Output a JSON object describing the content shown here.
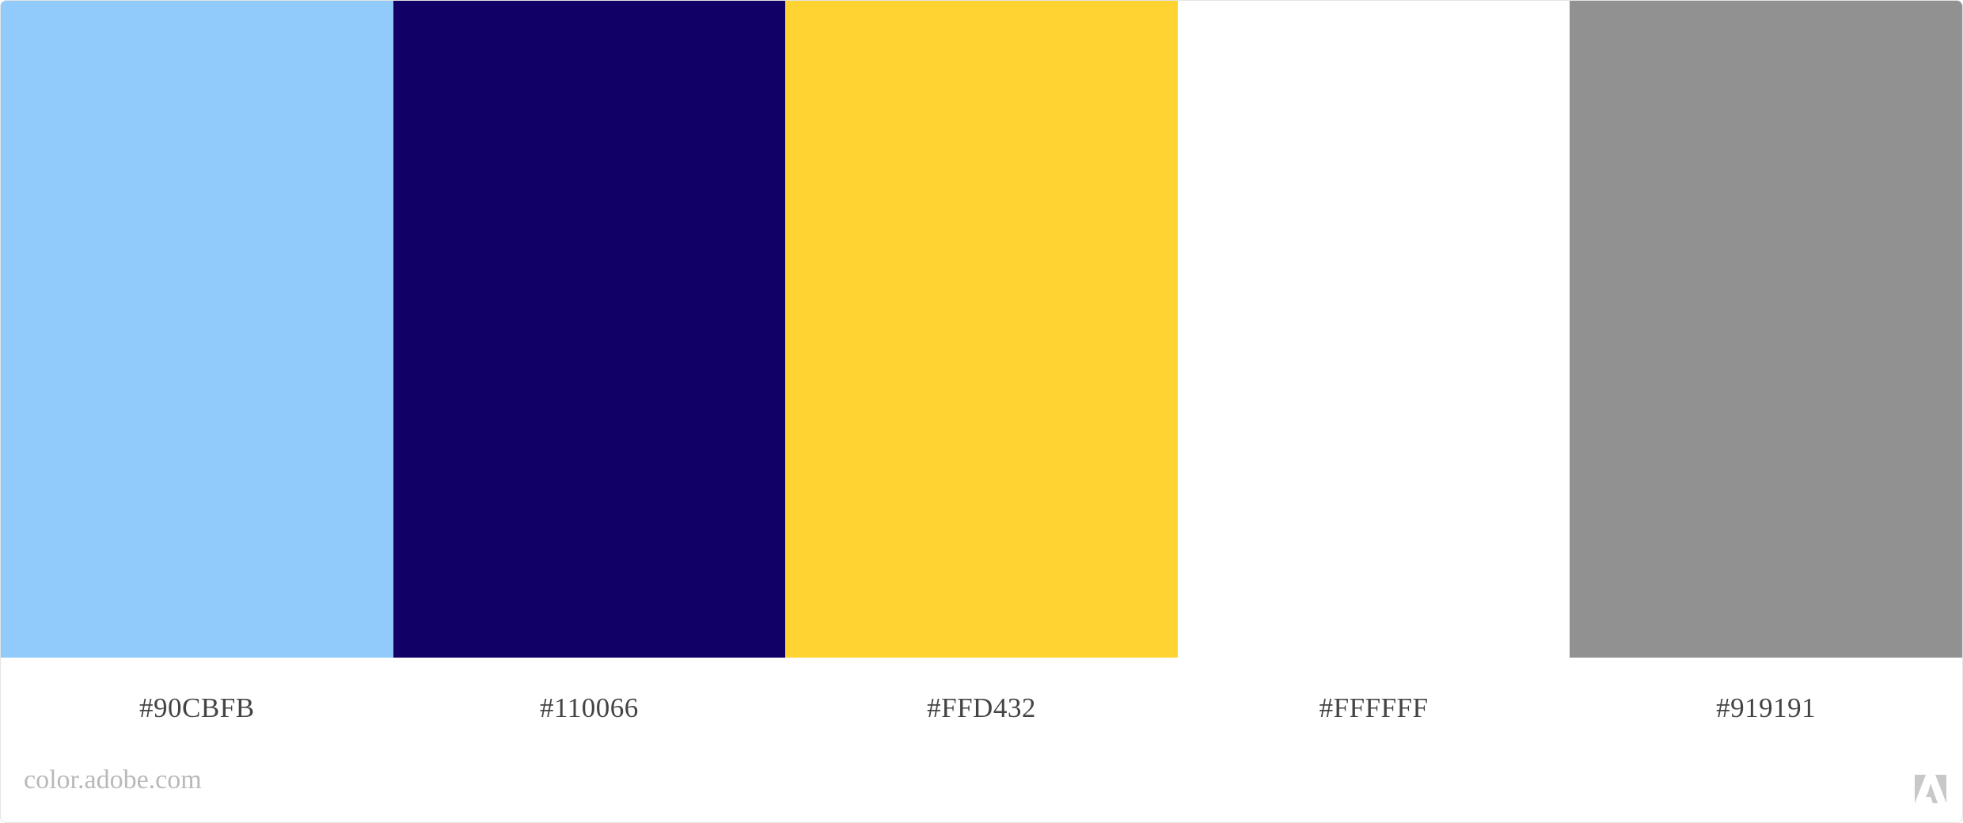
{
  "palette": {
    "swatches": [
      {
        "color": "#90CBFB",
        "label": "#90CBFB"
      },
      {
        "color": "#110066",
        "label": "#110066"
      },
      {
        "color": "#FFD432",
        "label": "#FFD432"
      },
      {
        "color": "#FFFFFF",
        "label": "#FFFFFF"
      },
      {
        "color": "#919191",
        "label": "#919191"
      }
    ]
  },
  "footer": {
    "site": "color.adobe.com",
    "logo_icon": "adobe-logo-icon"
  }
}
